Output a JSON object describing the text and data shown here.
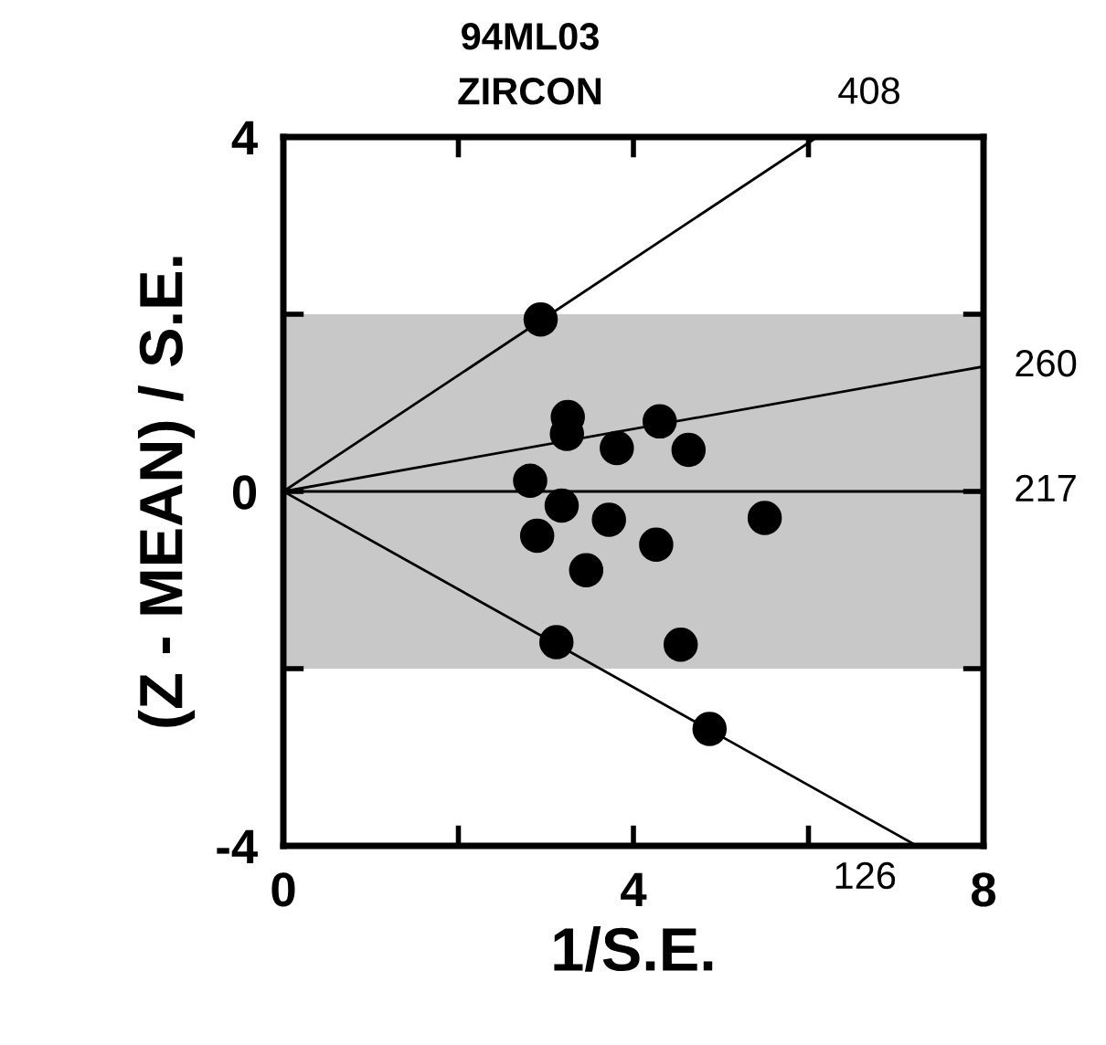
{
  "chart_data": {
    "type": "scatter",
    "title": "94ML03",
    "subtitle": "ZIRCON",
    "xlabel": "1/S.E.",
    "ylabel": "(Z - MEAN) / S.E.",
    "xlim": [
      0,
      8
    ],
    "xticks": [
      0,
      {
        "value": 2,
        "label": null
      },
      4,
      {
        "value": 6,
        "label": null
      },
      8
    ],
    "ylim": [
      -4,
      4
    ],
    "yticks": [
      -4,
      {
        "value": -2,
        "label": null
      },
      0,
      {
        "value": 2,
        "label": null
      },
      4
    ],
    "grid": false,
    "bands": [
      {
        "axis": "y",
        "from": -2,
        "to": 2,
        "color": "#c8c8c8"
      }
    ],
    "series": [
      {
        "marker": "circle",
        "color": "#000000",
        "x": [
          2.94,
          3.25,
          3.24,
          3.81,
          4.3,
          4.63,
          2.82,
          3.18,
          3.72,
          5.5,
          2.9,
          4.26,
          3.46,
          3.12,
          4.54,
          4.87
        ],
        "values": [
          1.94,
          0.84,
          0.65,
          0.49,
          0.79,
          0.47,
          0.12,
          -0.16,
          -0.32,
          -0.3,
          -0.5,
          -0.6,
          -0.89,
          -1.7,
          -1.73,
          -2.68
        ]
      },
      {
        "type": "line",
        "color": "#000000",
        "x": [
          0,
          6.1
        ],
        "values": [
          0,
          4
        ]
      },
      {
        "type": "line",
        "color": "#000000",
        "x": [
          0,
          8
        ],
        "values": [
          0,
          1.41
        ]
      },
      {
        "type": "line",
        "color": "#000000",
        "x": [
          0,
          8
        ],
        "values": [
          0,
          0
        ]
      },
      {
        "type": "line",
        "color": "#000000",
        "x": [
          0,
          7.24
        ],
        "values": [
          0,
          -4
        ]
      }
    ],
    "annotations": [
      {
        "text": "408",
        "x": 6.1,
        "y": 4
      },
      {
        "text": "260",
        "x": 8,
        "y": 1.41
      },
      {
        "text": "217",
        "x": 8,
        "y": 0
      },
      {
        "text": "126",
        "x": 7.24,
        "y": -4
      }
    ]
  }
}
